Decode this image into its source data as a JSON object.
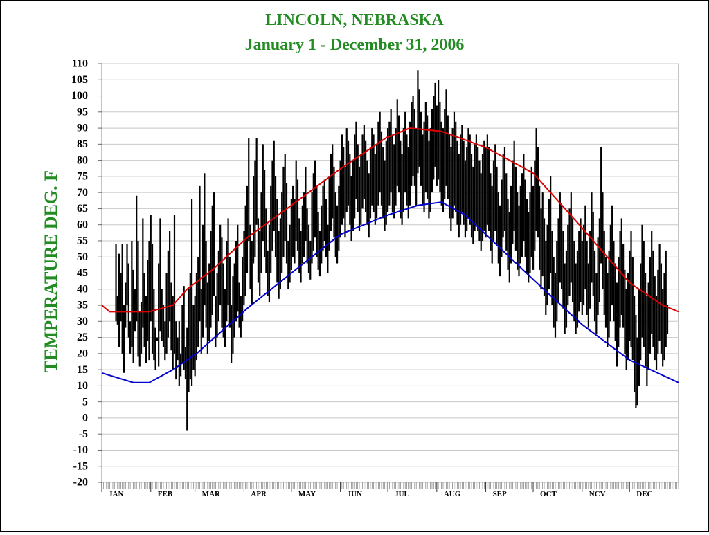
{
  "chart_data": {
    "type": "range",
    "title": "LINCOLN, NEBRASKA",
    "subtitle": "January 1 - December 31, 2006",
    "y_label": "TEMPERATURE DEG. F",
    "ylim": [
      -20,
      110
    ],
    "yticks": [
      -20,
      -15,
      -10,
      -5,
      0,
      5,
      10,
      15,
      20,
      25,
      30,
      35,
      40,
      45,
      50,
      55,
      60,
      65,
      70,
      75,
      80,
      85,
      90,
      95,
      100,
      105,
      110
    ],
    "xlim": [
      0,
      365
    ],
    "xticks": [
      {
        "value": 0,
        "label": "JAN"
      },
      {
        "value": 31,
        "label": "FEB"
      },
      {
        "value": 59,
        "label": "MAR"
      },
      {
        "value": 90,
        "label": "APR"
      },
      {
        "value": 120,
        "label": "MAY"
      },
      {
        "value": 151,
        "label": "JUN"
      },
      {
        "value": 181,
        "label": "JUL"
      },
      {
        "value": 212,
        "label": "AUG"
      },
      {
        "value": 243,
        "label": "SEP"
      },
      {
        "value": 273,
        "label": "OCT"
      },
      {
        "value": 304,
        "label": "NCV"
      },
      {
        "value": 334,
        "label": "DEC"
      }
    ],
    "grid": true,
    "x": [
      1,
      2,
      3,
      4,
      5,
      6,
      7,
      8,
      9,
      10,
      11,
      12,
      13,
      14,
      15,
      16,
      17,
      18,
      19,
      20,
      21,
      22,
      23,
      24,
      25,
      26,
      27,
      28,
      29,
      30,
      31,
      32,
      33,
      34,
      35,
      36,
      37,
      38,
      39,
      40,
      41,
      42,
      43,
      44,
      45,
      46,
      47,
      48,
      49,
      50,
      51,
      52,
      53,
      54,
      55,
      56,
      57,
      58,
      59,
      60,
      61,
      62,
      63,
      64,
      65,
      66,
      67,
      68,
      69,
      70,
      71,
      72,
      73,
      74,
      75,
      76,
      77,
      78,
      79,
      80,
      81,
      82,
      83,
      84,
      85,
      86,
      87,
      88,
      89,
      90,
      91,
      92,
      93,
      94,
      95,
      96,
      97,
      98,
      99,
      100,
      101,
      102,
      103,
      104,
      105,
      106,
      107,
      108,
      109,
      110,
      111,
      112,
      113,
      114,
      115,
      116,
      117,
      118,
      119,
      120,
      121,
      122,
      123,
      124,
      125,
      126,
      127,
      128,
      129,
      130,
      131,
      132,
      133,
      134,
      135,
      136,
      137,
      138,
      139,
      140,
      141,
      142,
      143,
      144,
      145,
      146,
      147,
      148,
      149,
      150,
      151,
      152,
      153,
      154,
      155,
      156,
      157,
      158,
      159,
      160,
      161,
      162,
      163,
      164,
      165,
      166,
      167,
      168,
      169,
      170,
      171,
      172,
      173,
      174,
      175,
      176,
      177,
      178,
      179,
      180,
      181,
      182,
      183,
      184,
      185,
      186,
      187,
      188,
      189,
      190,
      191,
      192,
      193,
      194,
      195,
      196,
      197,
      198,
      199,
      200,
      201,
      202,
      203,
      204,
      205,
      206,
      207,
      208,
      209,
      210,
      211,
      212,
      213,
      214,
      215,
      216,
      217,
      218,
      219,
      220,
      221,
      222,
      223,
      224,
      225,
      226,
      227,
      228,
      229,
      230,
      231,
      232,
      233,
      234,
      235,
      236,
      237,
      238,
      239,
      240,
      241,
      242,
      243,
      244,
      245,
      246,
      247,
      248,
      249,
      250,
      251,
      252,
      253,
      254,
      255,
      256,
      257,
      258,
      259,
      260,
      261,
      262,
      263,
      264,
      265,
      266,
      267,
      268,
      269,
      270,
      271,
      272,
      273,
      274,
      275,
      276,
      277,
      278,
      279,
      280,
      281,
      282,
      283,
      284,
      285,
      286,
      287,
      288,
      289,
      290,
      291,
      292,
      293,
      294,
      295,
      296,
      297,
      298,
      299,
      300,
      301,
      302,
      303,
      304,
      305,
      306,
      307,
      308,
      309,
      310,
      311,
      312,
      313,
      314,
      315,
      316,
      317,
      318,
      319,
      320,
      321,
      322,
      323,
      324,
      325,
      326,
      327,
      328,
      329,
      330,
      331,
      332,
      333,
      334,
      335,
      336,
      337,
      338,
      339,
      340,
      341,
      342,
      343,
      344,
      345,
      346,
      347,
      348,
      349,
      350,
      351,
      352,
      353,
      354,
      355,
      356,
      357,
      358,
      359,
      360,
      361,
      362,
      363,
      364,
      365
    ],
    "color": "#000000",
    "high": [
      null,
      null,
      null,
      null,
      null,
      null,
      null,
      null,
      54,
      38,
      51,
      45,
      54,
      35,
      42,
      54,
      48,
      30,
      55,
      46,
      40,
      69,
      55,
      33,
      36,
      62,
      45,
      38,
      49,
      55,
      63,
      54,
      40,
      28,
      25,
      48,
      62,
      40,
      35,
      30,
      45,
      52,
      58,
      42,
      38,
      63,
      30,
      25,
      30,
      20,
      35,
      41,
      22,
      28,
      40,
      45,
      68,
      35,
      38,
      45,
      50,
      72,
      40,
      60,
      76,
      55,
      42,
      48,
      58,
      66,
      70,
      38,
      45,
      52,
      60,
      56,
      48,
      40,
      55,
      62,
      50,
      35,
      44,
      48,
      55,
      60,
      42,
      38,
      50,
      58,
      66,
      72,
      87,
      60,
      55,
      75,
      80,
      87,
      62,
      58,
      70,
      85,
      77,
      65,
      52,
      60,
      72,
      80,
      86,
      75,
      68,
      58,
      62,
      70,
      78,
      82,
      73,
      55,
      60,
      68,
      72,
      68,
      80,
      74,
      62,
      58,
      66,
      70,
      78,
      65,
      60,
      55,
      70,
      76,
      80,
      72,
      64,
      58,
      66,
      72,
      74,
      68,
      60,
      75,
      82,
      85,
      78,
      70,
      66,
      72,
      80,
      88,
      84,
      78,
      90,
      86,
      82,
      75,
      80,
      88,
      92,
      85,
      78,
      82,
      88,
      91,
      86,
      80,
      76,
      84,
      90,
      88,
      82,
      85,
      92,
      95,
      89,
      84,
      80,
      86,
      90,
      92,
      96,
      88,
      85,
      90,
      99,
      94,
      86,
      82,
      90,
      95,
      88,
      84,
      92,
      98,
      100,
      96,
      90,
      108,
      102,
      95,
      88,
      92,
      98,
      94,
      86,
      90,
      96,
      100,
      104,
      97,
      105,
      98,
      92,
      90,
      96,
      102,
      94,
      88,
      84,
      90,
      95,
      92,
      86,
      82,
      88,
      91,
      86,
      80,
      84,
      90,
      88,
      82,
      78,
      85,
      88,
      84,
      80,
      76,
      82,
      86,
      84,
      88,
      84,
      76,
      72,
      80,
      85,
      78,
      70,
      66,
      74,
      82,
      84,
      76,
      68,
      64,
      72,
      80,
      86,
      78,
      70,
      66,
      72,
      76,
      82,
      74,
      68,
      64,
      70,
      78,
      72,
      80,
      90,
      84,
      72,
      65,
      70,
      62,
      55,
      60,
      68,
      75,
      58,
      50,
      45,
      55,
      62,
      70,
      66,
      58,
      48,
      52,
      60,
      65,
      70,
      62,
      55,
      48,
      52,
      58,
      62,
      55,
      60,
      66,
      55,
      48,
      58,
      70,
      64,
      52,
      45,
      56,
      62,
      84,
      70,
      58,
      50,
      45,
      52,
      60,
      66,
      55,
      48,
      42,
      50,
      58,
      62,
      54,
      46,
      40,
      45,
      52,
      58,
      50,
      38,
      32,
      25,
      40,
      48,
      60,
      55,
      45,
      38,
      42,
      50,
      58,
      52,
      44,
      38,
      46,
      54,
      48,
      40,
      45,
      52,
      35,
      null,
      null,
      null,
      null,
      null,
      null,
      null
    ],
    "low": [
      null,
      null,
      null,
      null,
      null,
      null,
      null,
      null,
      30,
      29,
      22,
      30,
      20,
      14,
      28,
      35,
      25,
      20,
      22,
      17,
      27,
      30,
      19,
      16,
      20,
      28,
      22,
      17,
      24,
      18,
      30,
      20,
      18,
      15,
      24,
      16,
      27,
      24,
      22,
      18,
      20,
      25,
      30,
      21,
      15,
      20,
      12,
      18,
      10,
      13,
      17,
      15,
      12,
      -4,
      8,
      12,
      10,
      15,
      13,
      18,
      22,
      30,
      20,
      25,
      35,
      28,
      20,
      24,
      28,
      32,
      38,
      22,
      25,
      30,
      35,
      28,
      25,
      22,
      30,
      35,
      28,
      17,
      20,
      25,
      30,
      33,
      28,
      25,
      30,
      35,
      38,
      45,
      55,
      40,
      35,
      48,
      50,
      60,
      42,
      38,
      45,
      55,
      50,
      45,
      38,
      36,
      45,
      52,
      58,
      50,
      42,
      37,
      40,
      45,
      50,
      55,
      48,
      40,
      42,
      46,
      50,
      48,
      55,
      52,
      45,
      42,
      48,
      50,
      55,
      48,
      45,
      43,
      48,
      52,
      56,
      50,
      46,
      44,
      48,
      52,
      55,
      50,
      45,
      52,
      58,
      62,
      56,
      50,
      48,
      52,
      56,
      60,
      62,
      56,
      64,
      66,
      60,
      55,
      58,
      62,
      68,
      64,
      58,
      60,
      65,
      68,
      64,
      60,
      56,
      62,
      66,
      64,
      60,
      62,
      66,
      70,
      66,
      62,
      58,
      60,
      64,
      66,
      70,
      64,
      62,
      66,
      72,
      70,
      62,
      60,
      64,
      70,
      66,
      62,
      66,
      72,
      75,
      72,
      66,
      76,
      78,
      72,
      66,
      64,
      70,
      68,
      62,
      64,
      70,
      74,
      78,
      72,
      74,
      70,
      66,
      64,
      68,
      72,
      68,
      62,
      58,
      62,
      66,
      64,
      60,
      56,
      60,
      64,
      60,
      56,
      58,
      62,
      60,
      56,
      54,
      58,
      60,
      58,
      55,
      52,
      55,
      58,
      56,
      60,
      58,
      52,
      48,
      55,
      58,
      54,
      48,
      44,
      50,
      56,
      58,
      52,
      46,
      42,
      48,
      54,
      58,
      52,
      46,
      44,
      48,
      50,
      55,
      50,
      45,
      42,
      45,
      50,
      46,
      52,
      58,
      56,
      46,
      40,
      44,
      38,
      32,
      35,
      40,
      45,
      35,
      28,
      25,
      30,
      36,
      42,
      40,
      34,
      26,
      28,
      35,
      38,
      42,
      36,
      30,
      26,
      28,
      33,
      36,
      32,
      35,
      40,
      32,
      28,
      34,
      42,
      38,
      30,
      26,
      32,
      36,
      48,
      40,
      32,
      28,
      22,
      25,
      30,
      35,
      30,
      24,
      16,
      22,
      28,
      32,
      28,
      20,
      15,
      18,
      24,
      22,
      18,
      8,
      3,
      4,
      10,
      18,
      25,
      22,
      16,
      10,
      15,
      20,
      26,
      22,
      18,
      15,
      20,
      24,
      20,
      16,
      18,
      22,
      26,
      null,
      null,
      null,
      null,
      null,
      null,
      null
    ],
    "series": [
      {
        "color": "#dd0000",
        "x": [
          0,
          5,
          30,
          45,
          54,
          70,
          92,
          120,
          150,
          180,
          195,
          215,
          243,
          273,
          304,
          334,
          355,
          365
        ],
        "values": [
          35,
          33,
          33,
          35,
          40,
          46,
          56,
          66,
          77,
          87,
          90,
          89,
          84,
          76,
          59,
          42,
          35,
          33
        ]
      },
      {
        "color": "#0000cc",
        "x": [
          0,
          20,
          30,
          45,
          60,
          92,
          120,
          151,
          181,
          200,
          215,
          230,
          243,
          273,
          304,
          334,
          365
        ],
        "values": [
          14,
          11,
          11,
          15,
          20,
          34,
          45,
          57,
          63,
          66,
          67,
          63,
          57,
          43,
          29,
          18,
          11
        ]
      }
    ]
  }
}
